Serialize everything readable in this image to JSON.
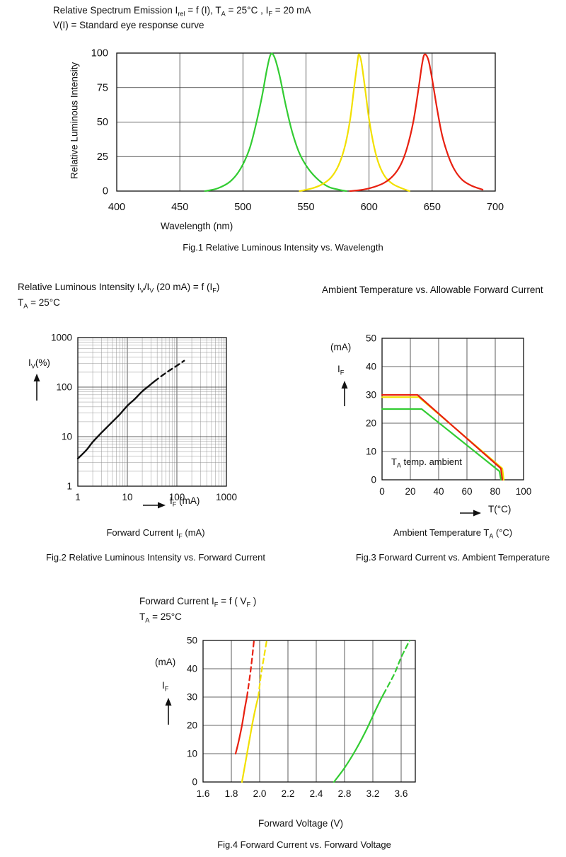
{
  "page": {
    "header_line1": "Relative Spectrum Emission I~rel~ = f (I), T~A~ = 25°C , I~F~ = 20 mA",
    "header_line2": "V(I) = Standard eye response curve"
  },
  "chart_data": [
    {
      "id": "fig1",
      "type": "line",
      "title": "Relative Spectrum Emission",
      "ylabel": "Relative Luminous Intensity",
      "xlabel": "Wavelength (nm)",
      "caption": "Fig.1 Relative Luminous Intensity vs. Wavelength",
      "xscale": "linear",
      "xlim": [
        400,
        700
      ],
      "xticks": [
        400,
        450,
        500,
        550,
        600,
        650,
        700
      ],
      "yscale": "linear",
      "ylim": [
        0,
        100
      ],
      "yticks": [
        0,
        25,
        50,
        75,
        100
      ],
      "grid": true,
      "legend": "none",
      "series": [
        {
          "name": "green-led",
          "color": "#33cc33",
          "points": [
            [
              470,
              0
            ],
            [
              480,
              2
            ],
            [
              490,
              7
            ],
            [
              498,
              16
            ],
            [
              505,
              30
            ],
            [
              510,
              47
            ],
            [
              515,
              68
            ],
            [
              519,
              88
            ],
            [
              522,
              99
            ],
            [
              525,
              97
            ],
            [
              529,
              84
            ],
            [
              534,
              62
            ],
            [
              539,
              43
            ],
            [
              545,
              27
            ],
            [
              552,
              16
            ],
            [
              560,
              8
            ],
            [
              568,
              3
            ],
            [
              576,
              1
            ],
            [
              582,
              0
            ]
          ]
        },
        {
          "name": "yellow-led",
          "color": "#f2e000",
          "points": [
            [
              545,
              0
            ],
            [
              555,
              2
            ],
            [
              563,
              5
            ],
            [
              570,
              10
            ],
            [
              576,
              19
            ],
            [
              581,
              33
            ],
            [
              585,
              52
            ],
            [
              588,
              74
            ],
            [
              591,
              95
            ],
            [
              592,
              99
            ],
            [
              594,
              93
            ],
            [
              597,
              73
            ],
            [
              600,
              52
            ],
            [
              604,
              32
            ],
            [
              608,
              19
            ],
            [
              613,
              10
            ],
            [
              619,
              5
            ],
            [
              626,
              2
            ],
            [
              632,
              0
            ]
          ]
        },
        {
          "name": "red-led",
          "color": "#e82010",
          "points": [
            [
              585,
              0
            ],
            [
              595,
              1
            ],
            [
              604,
              3
            ],
            [
              612,
              6
            ],
            [
              619,
              11
            ],
            [
              625,
              19
            ],
            [
              630,
              31
            ],
            [
              635,
              50
            ],
            [
              639,
              73
            ],
            [
              642,
              92
            ],
            [
              644,
              99
            ],
            [
              647,
              95
            ],
            [
              650,
              81
            ],
            [
              654,
              59
            ],
            [
              658,
              40
            ],
            [
              663,
              25
            ],
            [
              668,
              15
            ],
            [
              674,
              8
            ],
            [
              681,
              4
            ],
            [
              690,
              1
            ]
          ]
        }
      ]
    },
    {
      "id": "fig2",
      "type": "line",
      "title_line1": "Relative Luminous Intensity I~V~/I~V~ (20 mA) = f (I~F~)",
      "title_line2": "T~A~ = 25°C",
      "y_annotation": "I~V~(%)",
      "x_annotation": "I~F~ (mA)",
      "caption1": "Forward Current I~F~ (mA)",
      "caption2": "Fig.2 Relative Luminous Intensity vs. Forward Current",
      "xscale": "log",
      "xlim": [
        1,
        1000
      ],
      "xticks": [
        1,
        10,
        100,
        1000
      ],
      "yscale": "log",
      "ylim": [
        1,
        1000
      ],
      "yticks": [
        1,
        10,
        100,
        1000
      ],
      "grid": "log-minor",
      "series": [
        {
          "name": "relative-luminous-intensity",
          "color": "#111111",
          "width": 2.4,
          "points": [
            [
              1,
              3.6
            ],
            [
              1.5,
              5.4
            ],
            [
              2,
              7.8
            ],
            [
              3,
              12
            ],
            [
              4,
              16
            ],
            [
              5,
              20
            ],
            [
              7,
              28
            ],
            [
              10,
              42
            ],
            [
              14,
              57
            ],
            [
              20,
              82
            ],
            [
              27,
              105
            ],
            [
              35,
              130
            ]
          ],
          "dashed_points": [
            [
              35,
              130
            ],
            [
              50,
              170
            ],
            [
              70,
              215
            ],
            [
              100,
              270
            ],
            [
              140,
              340
            ]
          ]
        }
      ]
    },
    {
      "id": "fig3",
      "type": "line",
      "header": "Ambient Temperature vs. Allowable Forward Current",
      "y_unit": "(mA)",
      "y_symbol": "I~F~",
      "x_annotation": "T(°C)",
      "plot_annotation": "T~A~ temp. ambient",
      "caption1": "Ambient Temperature T~A~ (°C)",
      "caption2": "Fig.3 Forward Current vs. Ambient Temperature",
      "xscale": "linear",
      "xlim": [
        0,
        100
      ],
      "xticks": [
        0,
        20,
        40,
        60,
        80,
        100
      ],
      "yscale": "linear",
      "ylim": [
        0,
        50
      ],
      "yticks": [
        0,
        10,
        20,
        30,
        40,
        50
      ],
      "grid": true,
      "series": [
        {
          "name": "yellow-led",
          "color": "#f2e000",
          "smooth": false,
          "points": [
            [
              0,
              29.2
            ],
            [
              26,
              29.2
            ],
            [
              85,
              4
            ],
            [
              86,
              0
            ]
          ]
        },
        {
          "name": "red-led",
          "color": "#e82010",
          "smooth": false,
          "points": [
            [
              0,
              30
            ],
            [
              25,
              30
            ],
            [
              84,
              4
            ],
            [
              85,
              0
            ]
          ]
        },
        {
          "name": "green-led",
          "color": "#33cc33",
          "smooth": false,
          "points": [
            [
              0,
              25
            ],
            [
              28,
              25
            ],
            [
              83,
              3
            ],
            [
              84,
              0
            ]
          ]
        }
      ]
    },
    {
      "id": "fig4",
      "type": "line",
      "title_line1": "Forward Current I~F~ = f ( V~F~ )",
      "title_line2": "T~A~ = 25°C",
      "y_unit": "(mA)",
      "y_symbol": "I~F~",
      "xlabel": "Forward Voltage (V)",
      "caption": "Fig.4 Forward Current vs. Forward Voltage",
      "xscale": "segmented",
      "x_segments": [
        {
          "from": 1.6,
          "to": 2.4,
          "units": 4
        },
        {
          "from": 2.4,
          "to": 3.8,
          "units": 3.5
        }
      ],
      "xticks": [
        1.6,
        1.8,
        2.0,
        2.2,
        2.4,
        2.8,
        3.2,
        3.6
      ],
      "xtick_labels": [
        "1.6",
        "1.8",
        "2.0",
        "2.2",
        "2.4",
        "2.8",
        "3.2",
        "3.6"
      ],
      "yscale": "linear",
      "ylim": [
        0,
        50
      ],
      "yticks": [
        0,
        10,
        20,
        30,
        40,
        50
      ],
      "grid": true,
      "series": [
        {
          "name": "red-led",
          "color": "#e82010",
          "points": [
            [
              1.83,
              10
            ],
            [
              1.85,
              14
            ],
            [
              1.875,
              20
            ],
            [
              1.895,
              26
            ],
            [
              1.91,
              30
            ]
          ],
          "dashed_points": [
            [
              1.91,
              30
            ],
            [
              1.93,
              37
            ],
            [
              1.945,
              43
            ],
            [
              1.96,
              50
            ]
          ]
        },
        {
          "name": "yellow-led",
          "color": "#f2e000",
          "points": [
            [
              1.875,
              0
            ],
            [
              1.9,
              7
            ],
            [
              1.925,
              14
            ],
            [
              1.95,
              21
            ],
            [
              1.975,
              27
            ],
            [
              1.99,
              30
            ]
          ],
          "dashed_points": [
            [
              1.99,
              30
            ],
            [
              2.01,
              38
            ],
            [
              2.03,
              44
            ],
            [
              2.05,
              50
            ]
          ]
        },
        {
          "name": "green-led",
          "color": "#33cc33",
          "points": [
            [
              2.65,
              0
            ],
            [
              2.8,
              5
            ],
            [
              2.95,
              11
            ],
            [
              3.1,
              18
            ],
            [
              3.25,
              26
            ],
            [
              3.35,
              31
            ]
          ],
          "dashed_points": [
            [
              3.35,
              31
            ],
            [
              3.5,
              38
            ],
            [
              3.6,
              44
            ],
            [
              3.72,
              50
            ]
          ]
        }
      ]
    }
  ]
}
